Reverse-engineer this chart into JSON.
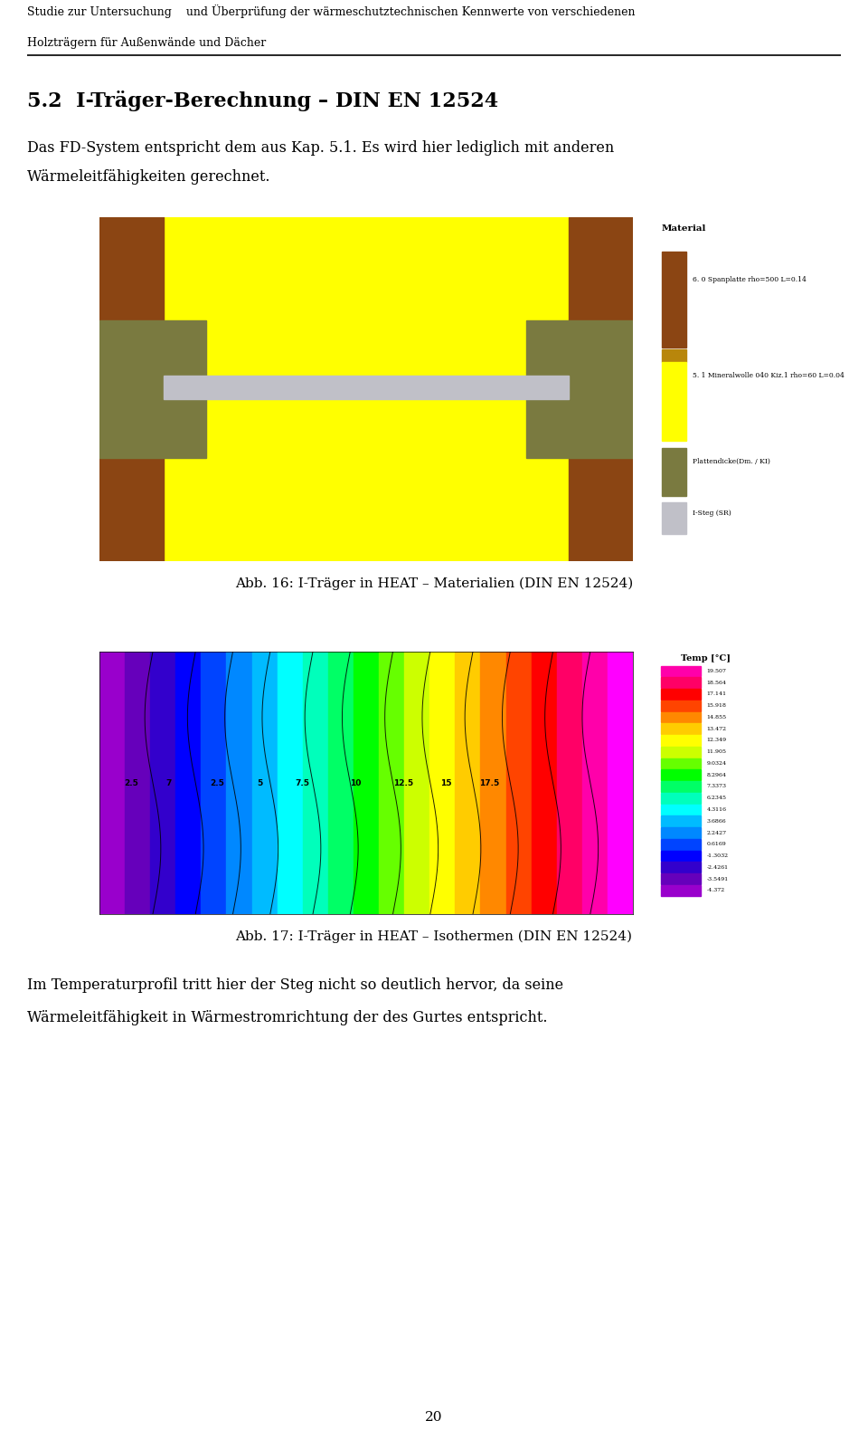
{
  "header_line1": "Studie zur Untersuchung    und Überprüfung der wärmeschutztechnischen Kennwerte von verschiedenen",
  "header_line2": "Holzträgern für Außenwände und Dächer",
  "section_title": "5.2  I-Träger-Berechnung – DIN EN 12524",
  "body_text1": "Das FD-System entspricht dem aus Kap. 5.1. Es wird hier lediglich mit anderen",
  "body_text2": "Wärmeleitfähigkeiten gerechnet.",
  "caption1": "Abb. 16: I-Träger in HEAT – Materialien (DIN EN 12524)",
  "caption2": "Abb. 17: I-Träger in HEAT – Isothermen (DIN EN 12524)",
  "body_text3": "Im Temperaturprofil tritt hier der Steg nicht so deutlich hervor, da seine",
  "body_text4": "Wärmeleitfähigkeit in Wärmestromrichtung der des Gurtes entspricht.",
  "page_number": "20",
  "legend_title": "Material",
  "legend_item0_label": "6. 0 Spanplatte rho=500 L=0.14",
  "legend_item1_label": "5. 1 Mineralwolle 040 Kiz.1 rho=60 L=0.04",
  "legend_item2_label": "Plattendicke(Dm. / KI)",
  "legend_item3_label": "I-Steg (SR)",
  "temp_legend_title": "Temp [°C]",
  "temp_values": [
    "19.507",
    "18.564",
    "17.141",
    "15.918",
    "14.855",
    "13.472",
    "12.349",
    "11.905",
    "9.0324",
    "8.2964",
    "7.3373",
    "6.2345",
    "4.3116",
    "3.6866",
    "2.2427",
    "0.6169",
    "-1.3032",
    "-2.4261",
    "-3.5491",
    "-4.372"
  ],
  "bg_color": "#ffffff",
  "header_font_size": 9.0,
  "body_font_size": 11.5,
  "caption_font_size": 11.0
}
